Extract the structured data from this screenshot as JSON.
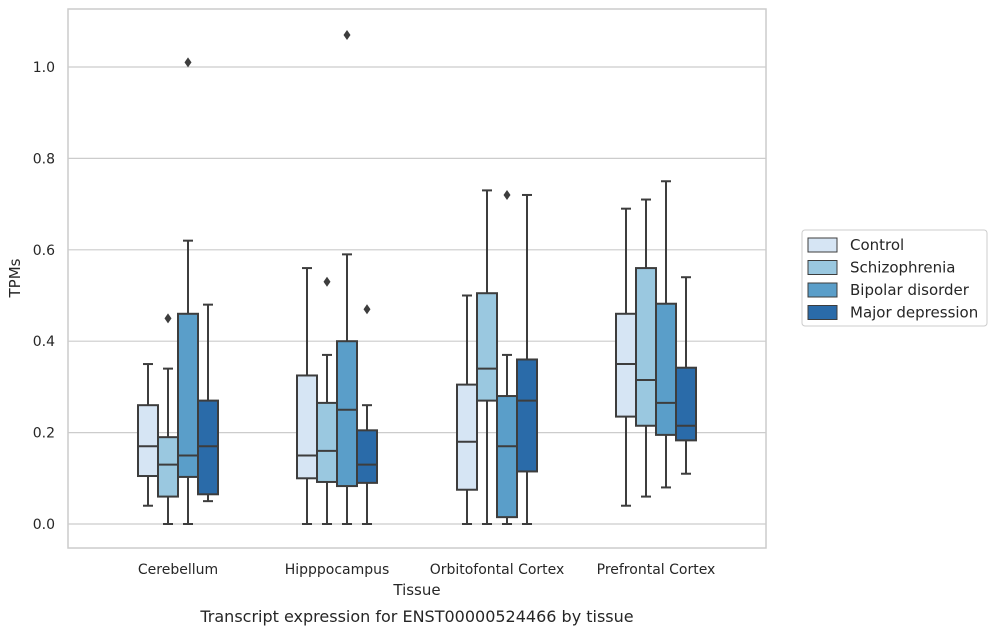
{
  "chart_data": {
    "type": "box",
    "title": "",
    "caption": "Transcript expression for ENST00000524466 by tissue",
    "xlabel": "Tissue",
    "ylabel": "TPMs",
    "ylim": [
      -0.05,
      1.125
    ],
    "yticks": [
      "0.0",
      "0.2",
      "0.4",
      "0.6",
      "0.8",
      "1.0"
    ],
    "grid": "horizontal",
    "legend_position": "right",
    "categories": [
      "Cerebellum",
      "Hipppocampus",
      "Orbitofontal Cortex",
      "Prefrontal Cortex"
    ],
    "series": [
      {
        "name": "Control",
        "color": "#d6e5f4",
        "boxes": [
          {
            "whislo": 0.04,
            "q1": 0.105,
            "med": 0.17,
            "q3": 0.26,
            "whishi": 0.35,
            "fliers": []
          },
          {
            "whislo": 0.0,
            "q1": 0.1,
            "med": 0.15,
            "q3": 0.325,
            "whishi": 0.56,
            "fliers": []
          },
          {
            "whislo": 0.0,
            "q1": 0.075,
            "med": 0.18,
            "q3": 0.305,
            "whishi": 0.5,
            "fliers": []
          },
          {
            "whislo": 0.04,
            "q1": 0.235,
            "med": 0.35,
            "q3": 0.46,
            "whishi": 0.69,
            "fliers": []
          }
        ]
      },
      {
        "name": "Schizophrenia",
        "color": "#9ac8e0",
        "boxes": [
          {
            "whislo": 0.0,
            "q1": 0.06,
            "med": 0.13,
            "q3": 0.19,
            "whishi": 0.34,
            "fliers": [
              0.45
            ]
          },
          {
            "whislo": 0.0,
            "q1": 0.092,
            "med": 0.16,
            "q3": 0.265,
            "whishi": 0.37,
            "fliers": [
              0.53
            ]
          },
          {
            "whislo": 0.0,
            "q1": 0.27,
            "med": 0.34,
            "q3": 0.505,
            "whishi": 0.73,
            "fliers": []
          },
          {
            "whislo": 0.06,
            "q1": 0.215,
            "med": 0.315,
            "q3": 0.56,
            "whishi": 0.71,
            "fliers": []
          }
        ]
      },
      {
        "name": "Bipolar disorder",
        "color": "#5a9ec9",
        "boxes": [
          {
            "whislo": 0.0,
            "q1": 0.103,
            "med": 0.15,
            "q3": 0.46,
            "whishi": 0.62,
            "fliers": [
              1.01
            ]
          },
          {
            "whislo": 0.0,
            "q1": 0.083,
            "med": 0.25,
            "q3": 0.4,
            "whishi": 0.59,
            "fliers": [
              1.07
            ]
          },
          {
            "whislo": 0.0,
            "q1": 0.015,
            "med": 0.17,
            "q3": 0.28,
            "whishi": 0.37,
            "fliers": [
              0.72
            ]
          },
          {
            "whislo": 0.08,
            "q1": 0.195,
            "med": 0.265,
            "q3": 0.482,
            "whishi": 0.75,
            "fliers": []
          }
        ]
      },
      {
        "name": "Major depression",
        "color": "#2a6ba9",
        "boxes": [
          {
            "whislo": 0.05,
            "q1": 0.065,
            "med": 0.17,
            "q3": 0.27,
            "whishi": 0.48,
            "fliers": []
          },
          {
            "whislo": 0.0,
            "q1": 0.09,
            "med": 0.13,
            "q3": 0.205,
            "whishi": 0.26,
            "fliers": [
              0.47
            ]
          },
          {
            "whislo": 0.0,
            "q1": 0.115,
            "med": 0.27,
            "q3": 0.36,
            "whishi": 0.72,
            "fliers": []
          },
          {
            "whislo": 0.11,
            "q1": 0.183,
            "med": 0.215,
            "q3": 0.342,
            "whishi": 0.54,
            "fliers": []
          }
        ]
      }
    ]
  }
}
